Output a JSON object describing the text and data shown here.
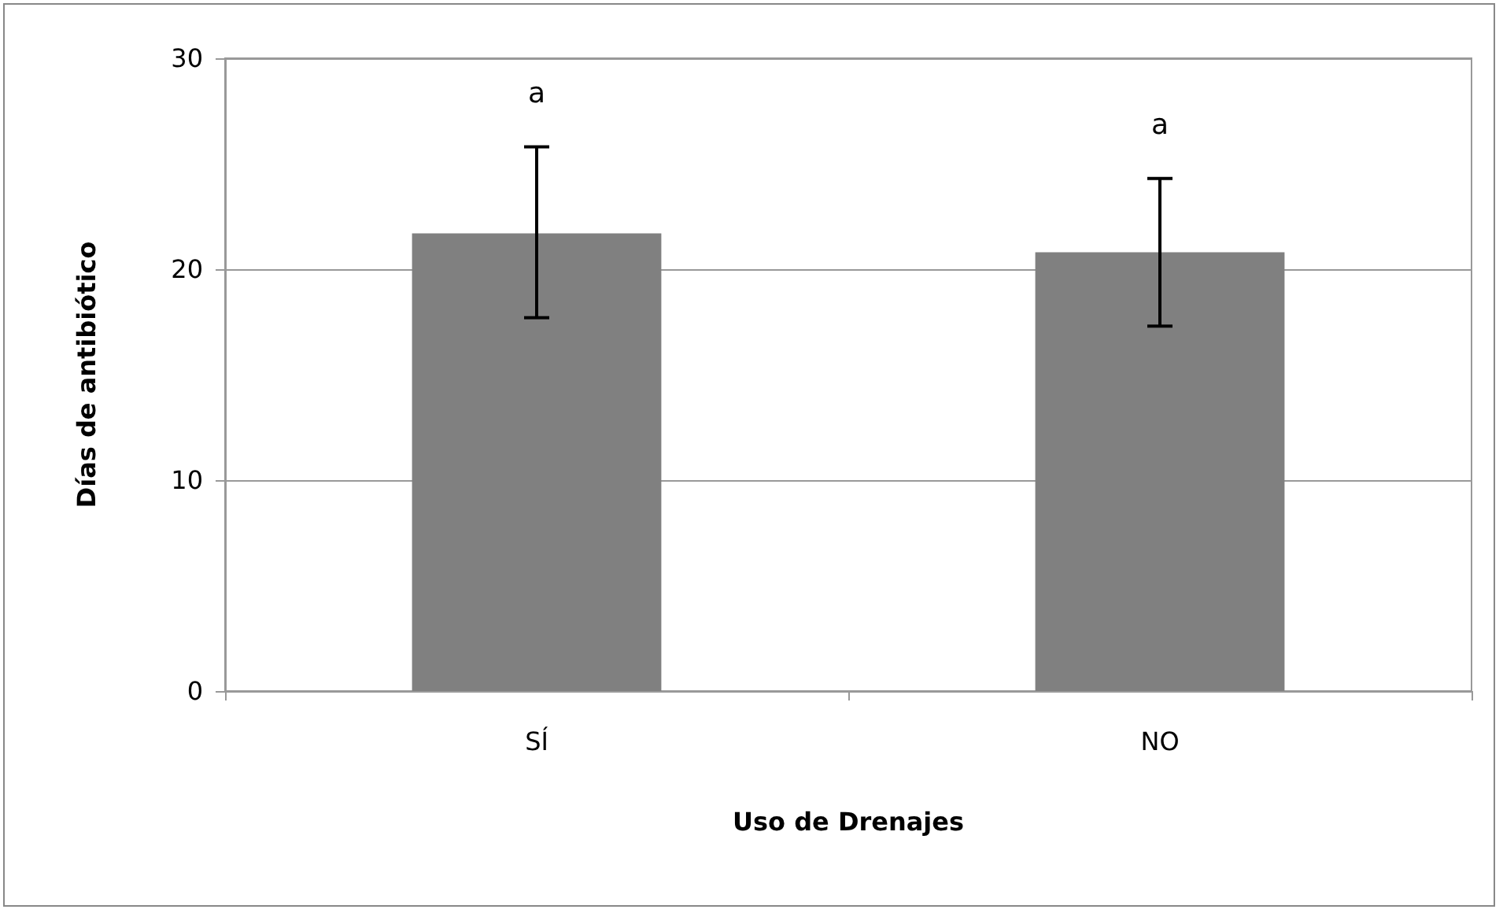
{
  "chart_data": {
    "type": "bar",
    "xlabel": "Uso de Drenajes",
    "ylabel": "Días de antibiótico",
    "categories": [
      "SÍ",
      "NO"
    ],
    "values": [
      21.7,
      20.8
    ],
    "color": "#808080",
    "errors": [
      [
        17.7,
        25.8
      ],
      [
        17.3,
        24.3
      ]
    ],
    "ylim": [
      0,
      30
    ],
    "yticks": [
      0,
      10,
      20,
      30
    ],
    "grid": "y",
    "annotations": [
      "a",
      "a"
    ]
  }
}
